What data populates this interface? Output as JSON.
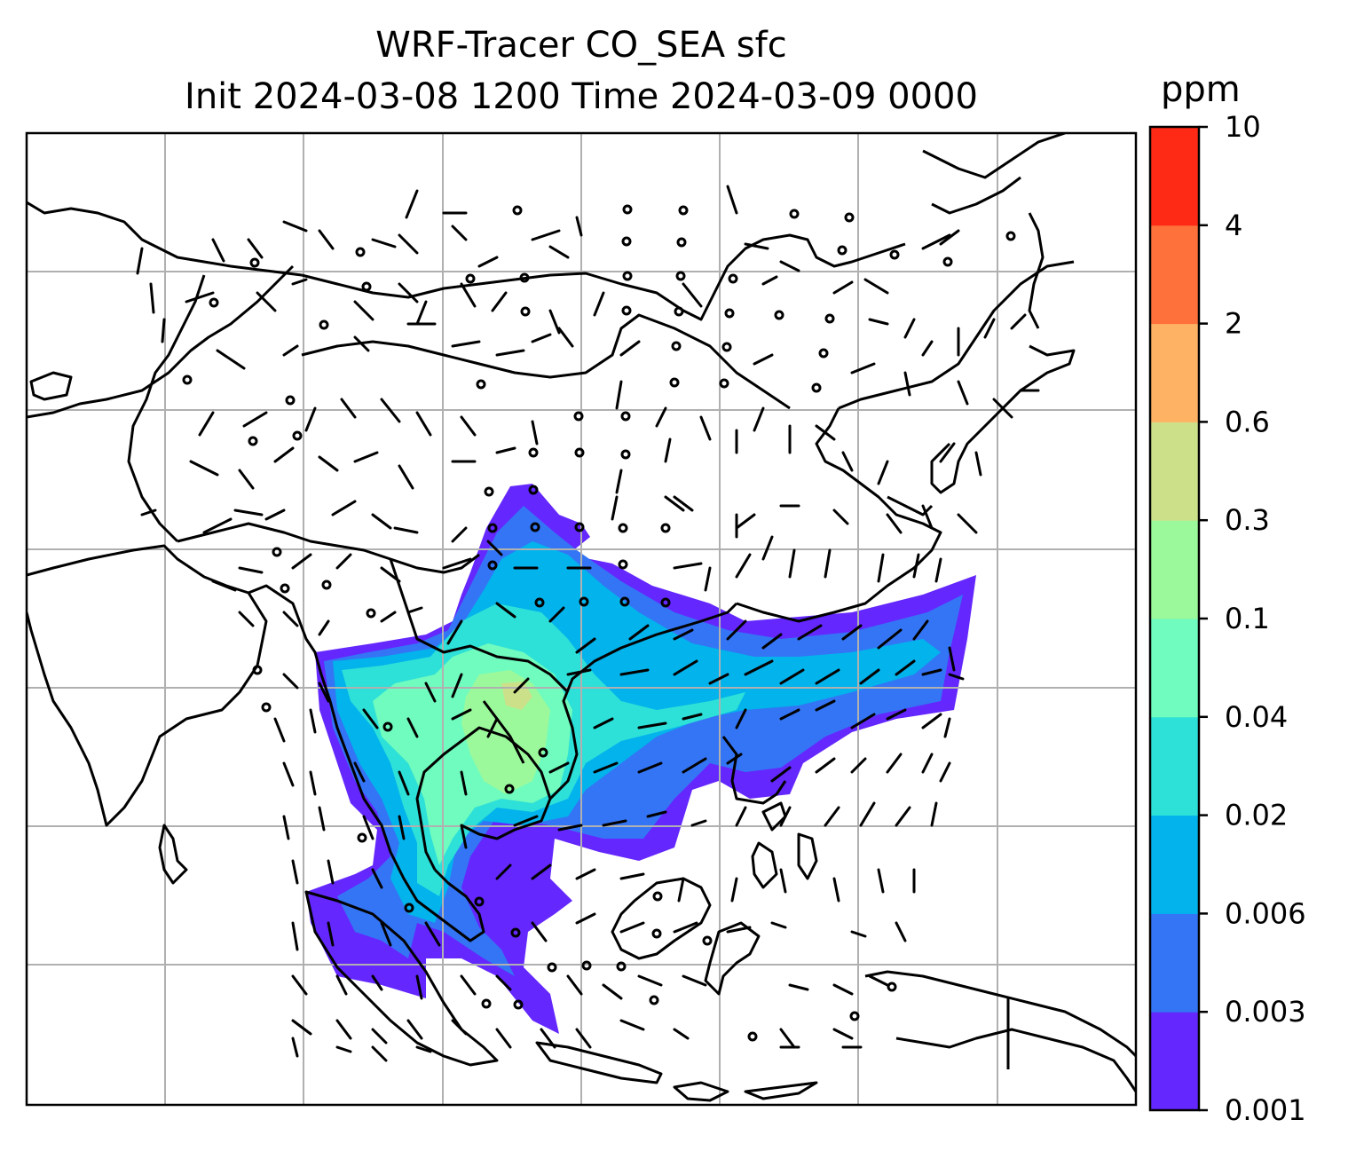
{
  "figure": {
    "title_line1": "WRF-Tracer CO_SEA sfc",
    "title_line2": "Init 2024-03-08 1200 Time 2024-03-09 0000",
    "units": "ppm"
  },
  "map": {
    "gridlines": "on",
    "coastlines": "on",
    "wind_barbs": "on",
    "filled_field": "surface CO tracer concentration"
  },
  "colorbar": {
    "levels": [
      "0.001",
      "0.003",
      "0.006",
      "0.02",
      "0.04",
      "0.1",
      "0.3",
      "0.6",
      "2",
      "4",
      "10"
    ],
    "colors": [
      "#6427fe",
      "#3475f5",
      "#02b3ec",
      "#2de0d8",
      "#6ffcbe",
      "#9bf99c",
      "#cce08a",
      "#feb264",
      "#fe713a",
      "#ff2a16"
    ]
  }
}
